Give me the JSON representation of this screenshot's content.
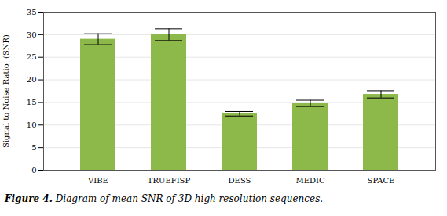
{
  "chart_data": {
    "type": "bar",
    "categories": [
      "VIBE",
      "TRUEFISP",
      "DESS",
      "MEDIC",
      "SPACE"
    ],
    "values": [
      29.0,
      30.0,
      12.5,
      14.8,
      16.8
    ],
    "errors": [
      1.2,
      1.3,
      0.5,
      0.7,
      0.8
    ],
    "color": "#8db84a",
    "ylabel": "Signal to Noise Ratio  (SNR)",
    "ylim": [
      0,
      35
    ],
    "yticks": [
      0,
      5,
      10,
      15,
      20,
      25,
      30,
      35
    ],
    "grid": true,
    "caption_label": "Figure 4.",
    "caption": "Diagram of mean SNR of 3D high resolution sequences."
  }
}
